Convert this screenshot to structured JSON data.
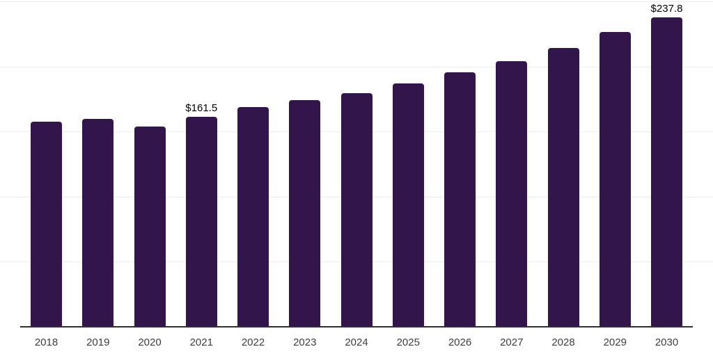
{
  "chart_data": {
    "type": "bar",
    "title": "",
    "xlabel": "",
    "ylabel": "",
    "categories": [
      "2018",
      "2019",
      "2020",
      "2021",
      "2022",
      "2023",
      "2024",
      "2025",
      "2026",
      "2027",
      "2028",
      "2029",
      "2030"
    ],
    "values": [
      157.5,
      159.8,
      154.0,
      161.5,
      168.9,
      174.3,
      179.7,
      187.2,
      195.6,
      204.3,
      214.4,
      226.6,
      237.8
    ],
    "ylim": [
      0,
      250
    ],
    "gridline_interval": 50,
    "grid": "horizontal-only",
    "legend": "none",
    "annotations": [
      {
        "category": "2021",
        "text": "$161.5"
      },
      {
        "category": "2030",
        "text": "$237.8"
      }
    ],
    "colors": {
      "bar": "#32154a",
      "axis_line": "#2f2f2f",
      "gridline": "#ededed",
      "tick_label": "#3d3d3d",
      "annotation_text": "#000000",
      "background": "#ffffff"
    }
  }
}
